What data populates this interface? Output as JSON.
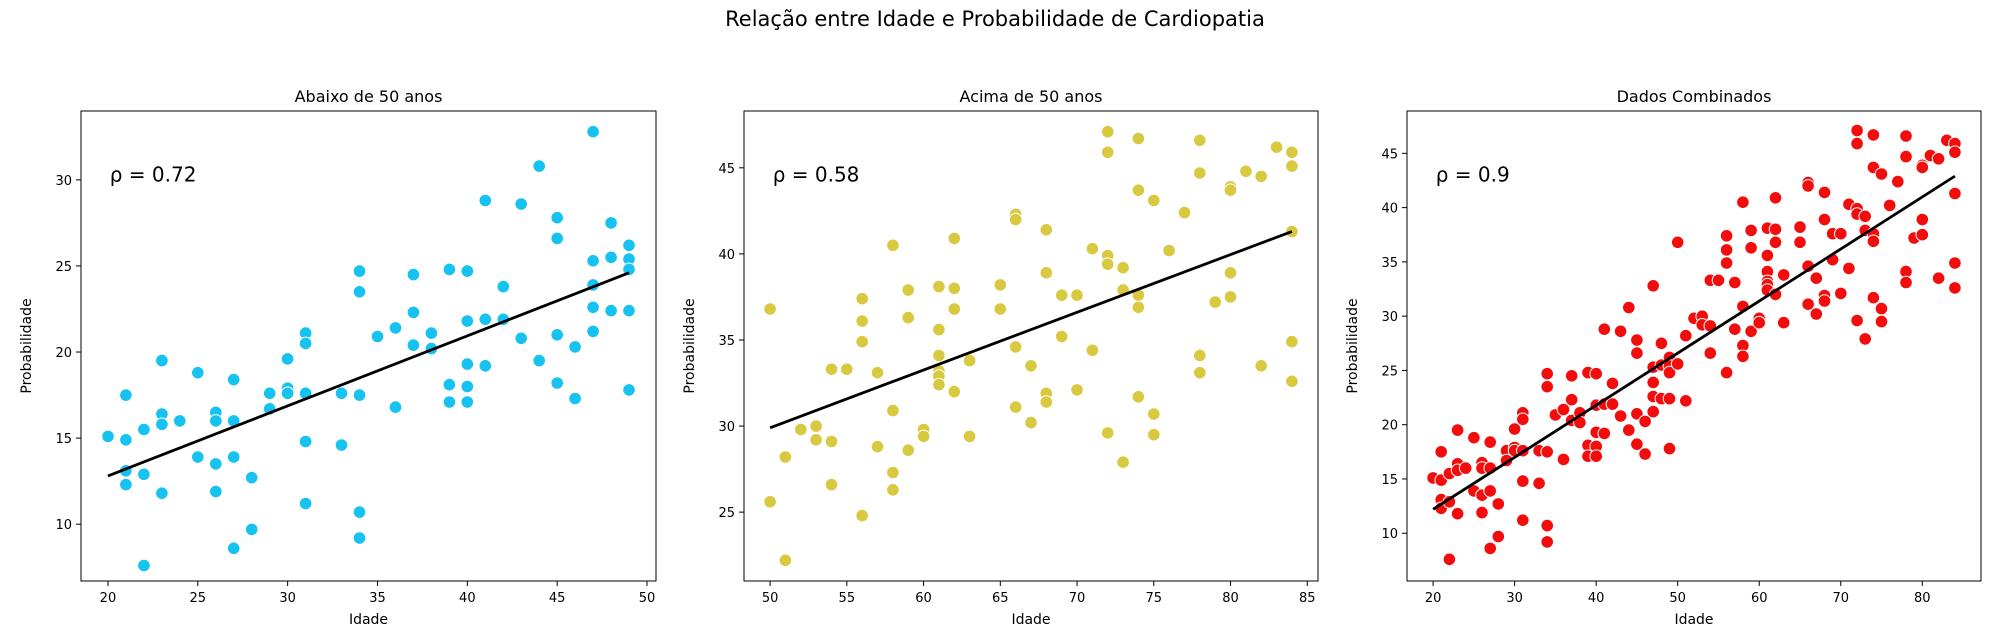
{
  "figure": {
    "suptitle": "Relação entre Idade e Probabilidade de Cardiopatia"
  },
  "chart_data": [
    {
      "type": "scatter",
      "title": "Abaixo de 50 anos",
      "xlabel": "Idade",
      "ylabel": "Probabilidade",
      "annotation": "ρ = 0.72",
      "color": "#16c3f0",
      "xlim": [
        18.5,
        50.5
      ],
      "ylim": [
        6.7,
        34.0
      ],
      "xticks": [
        20,
        25,
        30,
        35,
        40,
        45,
        50
      ],
      "yticks": [
        10,
        15,
        20,
        25,
        30
      ],
      "grid": false,
      "legend": "none",
      "trendline": {
        "x": [
          20,
          49
        ],
        "y": [
          12.8,
          24.6
        ]
      },
      "points": {
        "x": [
          20,
          21,
          21,
          21,
          21,
          22,
          22,
          22,
          23,
          23,
          23,
          23,
          24,
          25,
          25,
          26,
          26,
          26,
          26,
          27,
          27,
          27,
          27,
          28,
          28,
          29,
          29,
          30,
          30,
          30,
          31,
          31,
          31,
          31,
          31,
          33,
          33,
          34,
          34,
          34,
          34,
          34,
          35,
          36,
          36,
          37,
          37,
          37,
          38,
          38,
          39,
          39,
          39,
          40,
          40,
          40,
          40,
          40,
          41,
          41,
          41,
          42,
          42,
          43,
          43,
          44,
          44,
          45,
          45,
          45,
          45,
          46,
          46,
          47,
          47,
          47,
          47,
          47,
          48,
          48,
          48,
          49,
          49,
          49,
          49,
          49
        ],
        "y": [
          15.1,
          17.5,
          14.9,
          13.1,
          12.3,
          15.5,
          12.9,
          7.6,
          19.5,
          16.4,
          15.8,
          11.8,
          16.0,
          18.8,
          13.9,
          16.5,
          16.0,
          13.5,
          11.9,
          18.4,
          16.0,
          13.9,
          8.6,
          12.7,
          9.7,
          17.6,
          16.7,
          19.6,
          17.9,
          17.6,
          21.1,
          20.5,
          17.6,
          14.8,
          11.2,
          17.6,
          14.6,
          24.7,
          23.5,
          17.5,
          10.7,
          9.2,
          20.9,
          21.4,
          16.8,
          24.5,
          22.3,
          20.4,
          21.1,
          20.2,
          24.8,
          18.1,
          17.1,
          24.7,
          21.8,
          19.3,
          18.0,
          17.1,
          28.8,
          21.9,
          19.2,
          23.8,
          21.9,
          28.6,
          20.8,
          30.8,
          19.5,
          27.8,
          26.6,
          21.0,
          18.2,
          20.3,
          17.3,
          32.8,
          25.3,
          23.9,
          22.6,
          21.2,
          27.5,
          25.5,
          22.4,
          26.2,
          25.4,
          24.8,
          22.4,
          17.8
        ]
      }
    },
    {
      "type": "scatter",
      "title": "Acima de 50 anos",
      "xlabel": "Idade",
      "ylabel": "Probabilidade",
      "annotation": "ρ = 0.58",
      "color": "#d9c941",
      "xlim": [
        48.3,
        85.7
      ],
      "ylim": [
        21.0,
        48.3
      ],
      "xticks": [
        50,
        55,
        60,
        65,
        70,
        75,
        80,
        85
      ],
      "yticks": [
        25,
        30,
        35,
        40,
        45
      ],
      "grid": false,
      "legend": "none",
      "trendline": {
        "x": [
          50,
          84
        ],
        "y": [
          29.9,
          41.3
        ]
      },
      "points": {
        "x": [
          50,
          50,
          51,
          51,
          52,
          53,
          53,
          54,
          54,
          54,
          55,
          56,
          56,
          56,
          56,
          57,
          57,
          58,
          58,
          58,
          58,
          59,
          59,
          59,
          60,
          60,
          61,
          61,
          61,
          61,
          61,
          61,
          62,
          62,
          62,
          62,
          63,
          63,
          65,
          65,
          66,
          66,
          66,
          66,
          67,
          67,
          68,
          68,
          68,
          68,
          69,
          69,
          70,
          70,
          71,
          71,
          72,
          72,
          72,
          72,
          72,
          73,
          73,
          73,
          74,
          74,
          74,
          74,
          74,
          75,
          75,
          75,
          76,
          77,
          78,
          78,
          78,
          78,
          79,
          80,
          80,
          80,
          80,
          81,
          82,
          82,
          83,
          84,
          84,
          84,
          84,
          84
        ],
        "y": [
          36.8,
          25.6,
          28.2,
          22.2,
          29.8,
          30.0,
          29.2,
          33.3,
          29.1,
          26.6,
          33.3,
          37.4,
          36.1,
          34.9,
          24.8,
          33.1,
          28.8,
          40.5,
          30.9,
          27.3,
          26.3,
          37.9,
          36.3,
          28.6,
          29.8,
          29.4,
          38.1,
          35.6,
          34.1,
          33.2,
          32.9,
          32.4,
          40.9,
          38.0,
          36.8,
          32.0,
          33.8,
          29.4,
          38.2,
          36.8,
          42.3,
          42.0,
          34.6,
          31.1,
          33.5,
          30.2,
          41.4,
          38.9,
          31.9,
          31.4,
          37.6,
          35.2,
          37.6,
          32.1,
          40.3,
          34.4,
          47.1,
          45.9,
          39.9,
          39.4,
          29.6,
          39.2,
          37.9,
          27.9,
          46.7,
          43.7,
          37.6,
          36.9,
          31.7,
          43.1,
          30.7,
          29.5,
          40.2,
          42.4,
          46.6,
          44.7,
          34.1,
          33.1,
          37.2,
          43.9,
          43.7,
          38.9,
          37.5,
          44.8,
          44.5,
          33.5,
          46.2,
          45.9,
          45.1,
          41.3,
          34.9,
          32.6
        ]
      }
    },
    {
      "type": "scatter",
      "title": "Dados Combinados",
      "xlabel": "Idade",
      "ylabel": "Probabilidade",
      "annotation": "ρ = 0.9",
      "color": "#f20c0c",
      "xlim": [
        16.8,
        87.2
      ],
      "ylim": [
        5.6,
        48.9
      ],
      "xticks": [
        20,
        30,
        40,
        50,
        60,
        70,
        80
      ],
      "yticks": [
        10,
        15,
        20,
        25,
        30,
        35,
        40,
        45
      ],
      "grid": false,
      "legend": "none",
      "trendline": {
        "x": [
          20,
          84
        ],
        "y": [
          12.2,
          42.9
        ]
      },
      "points": {
        "x": [
          20,
          21,
          21,
          21,
          21,
          22,
          22,
          22,
          23,
          23,
          23,
          23,
          24,
          25,
          25,
          26,
          26,
          26,
          26,
          27,
          27,
          27,
          27,
          28,
          28,
          29,
          29,
          30,
          30,
          30,
          31,
          31,
          31,
          31,
          31,
          33,
          33,
          34,
          34,
          34,
          34,
          34,
          35,
          36,
          36,
          37,
          37,
          37,
          38,
          38,
          39,
          39,
          39,
          40,
          40,
          40,
          40,
          40,
          41,
          41,
          41,
          42,
          42,
          43,
          43,
          44,
          44,
          45,
          45,
          45,
          45,
          46,
          46,
          47,
          47,
          47,
          47,
          47,
          48,
          48,
          48,
          49,
          49,
          49,
          49,
          49,
          50,
          50,
          51,
          51,
          52,
          53,
          53,
          54,
          54,
          54,
          55,
          56,
          56,
          56,
          56,
          57,
          57,
          58,
          58,
          58,
          58,
          59,
          59,
          59,
          60,
          60,
          61,
          61,
          61,
          61,
          61,
          61,
          62,
          62,
          62,
          62,
          63,
          63,
          65,
          65,
          66,
          66,
          66,
          66,
          67,
          67,
          68,
          68,
          68,
          68,
          69,
          69,
          70,
          70,
          71,
          71,
          72,
          72,
          72,
          72,
          72,
          73,
          73,
          73,
          74,
          74,
          74,
          74,
          74,
          75,
          75,
          75,
          76,
          77,
          78,
          78,
          78,
          78,
          79,
          80,
          80,
          80,
          80,
          81,
          82,
          82,
          83,
          84,
          84,
          84,
          84,
          84
        ],
        "y": [
          15.1,
          17.5,
          14.9,
          13.1,
          12.3,
          15.5,
          12.9,
          7.6,
          19.5,
          16.4,
          15.8,
          11.8,
          16.0,
          18.8,
          13.9,
          16.5,
          16.0,
          13.5,
          11.9,
          18.4,
          16.0,
          13.9,
          8.6,
          12.7,
          9.7,
          17.6,
          16.7,
          19.6,
          17.9,
          17.6,
          21.1,
          20.5,
          17.6,
          14.8,
          11.2,
          17.6,
          14.6,
          24.7,
          23.5,
          17.5,
          10.7,
          9.2,
          20.9,
          21.4,
          16.8,
          24.5,
          22.3,
          20.4,
          21.1,
          20.2,
          24.8,
          18.1,
          17.1,
          24.7,
          21.8,
          19.3,
          18.0,
          17.1,
          28.8,
          21.9,
          19.2,
          23.8,
          21.9,
          28.6,
          20.8,
          30.8,
          19.5,
          27.8,
          26.6,
          21.0,
          18.2,
          20.3,
          17.3,
          32.8,
          25.3,
          23.9,
          22.6,
          21.2,
          27.5,
          25.5,
          22.4,
          26.2,
          25.4,
          24.8,
          22.4,
          17.8,
          36.8,
          25.6,
          28.2,
          22.2,
          29.8,
          30.0,
          29.2,
          33.3,
          29.1,
          26.6,
          33.3,
          37.4,
          36.1,
          34.9,
          24.8,
          33.1,
          28.8,
          40.5,
          30.9,
          27.3,
          26.3,
          37.9,
          36.3,
          28.6,
          29.8,
          29.4,
          38.1,
          35.6,
          34.1,
          33.2,
          32.9,
          32.4,
          40.9,
          38.0,
          36.8,
          32.0,
          33.8,
          29.4,
          38.2,
          36.8,
          42.3,
          42.0,
          34.6,
          31.1,
          33.5,
          30.2,
          41.4,
          38.9,
          31.9,
          31.4,
          37.6,
          35.2,
          37.6,
          32.1,
          40.3,
          34.4,
          47.1,
          45.9,
          39.9,
          39.4,
          29.6,
          39.2,
          37.9,
          27.9,
          46.7,
          43.7,
          37.6,
          36.9,
          31.7,
          43.1,
          30.7,
          29.5,
          40.2,
          42.4,
          46.6,
          44.7,
          34.1,
          33.1,
          37.2,
          43.9,
          43.7,
          38.9,
          37.5,
          44.8,
          44.5,
          33.5,
          46.2,
          45.9,
          45.1,
          41.3,
          34.9,
          32.6
        ]
      }
    }
  ]
}
